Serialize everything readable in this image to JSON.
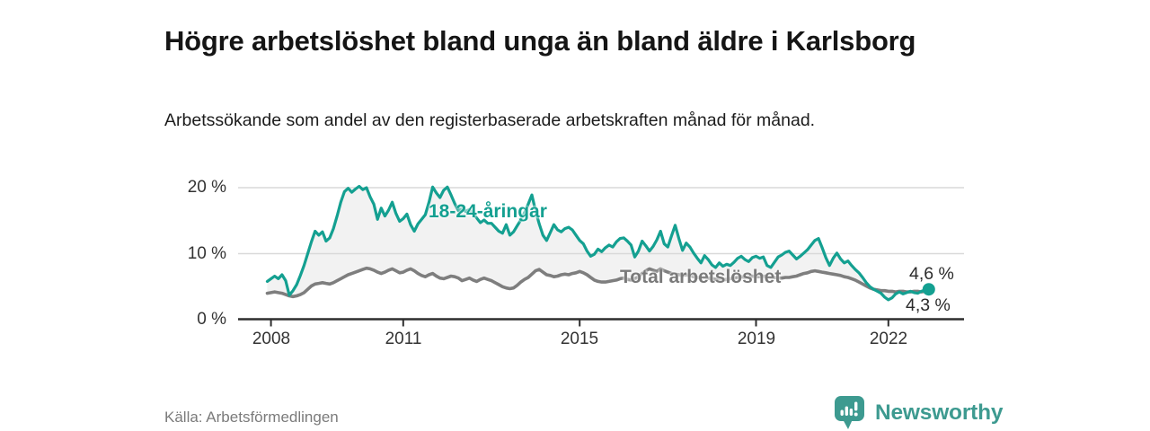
{
  "header": {
    "title": "Högre arbetslöshet bland unga än bland äldre i Karlsborg",
    "subtitle": "Arbetssökande som andel av den registerbaserade arbetskraften månad för månad."
  },
  "footer": {
    "source": "Källa: Arbetsförmedlingen",
    "brand_name": "Newsworthy",
    "brand_color": "#3d9a90",
    "brand_icon": "bar-chart-speech-bubble-icon"
  },
  "chart_data": {
    "type": "line",
    "title": "Högre arbetslöshet bland unga än bland äldre i Karlsborg",
    "subtitle": "Arbetssökande som andel av den registerbaserade arbetskraften månad för månad.",
    "unit": "%",
    "frequency": "monthly",
    "start": "2007-12",
    "end": "2022-12",
    "grid": "horizontal",
    "band_fill_between_series": "#f2f2f2",
    "x_axis": {
      "ticks": [
        2008,
        2011,
        2015,
        2019,
        2022
      ],
      "tick_labels": [
        "2008",
        "2011",
        "2015",
        "2019",
        "2022"
      ]
    },
    "y_axis": {
      "ticks": [
        0,
        10,
        20
      ],
      "tick_labels": [
        "0 %",
        "10 %",
        "20 %"
      ],
      "ylim": [
        0,
        21.5
      ]
    },
    "series": [
      {
        "name": "18-24-åringar",
        "color": "#14a091",
        "end_label": "4,6 %",
        "last_value": 4.6,
        "values": [
          5.8,
          6.2,
          6.6,
          6.2,
          6.8,
          5.9,
          3.7,
          4.4,
          5.3,
          6.7,
          8.2,
          10.0,
          11.8,
          13.4,
          12.8,
          13.3,
          11.9,
          12.4,
          13.8,
          15.7,
          17.8,
          19.4,
          19.9,
          19.3,
          19.8,
          20.2,
          19.7,
          20.0,
          18.6,
          17.5,
          15.2,
          16.9,
          15.7,
          16.6,
          17.8,
          16.1,
          14.9,
          15.3,
          16.0,
          14.4,
          13.4,
          14.5,
          15.2,
          15.9,
          17.8,
          20.1,
          19.2,
          18.5,
          19.6,
          20.1,
          18.9,
          17.6,
          16.5,
          16.9,
          16.4,
          16.7,
          16.1,
          15.4,
          14.7,
          15.1,
          14.6,
          14.6,
          14.0,
          13.4,
          13.1,
          14.4,
          12.8,
          13.3,
          14.2,
          15.1,
          16.2,
          17.5,
          18.9,
          16.5,
          14.5,
          12.8,
          12.0,
          13.2,
          14.4,
          13.6,
          13.3,
          13.8,
          14.0,
          13.6,
          12.8,
          12.0,
          11.5,
          10.4,
          9.6,
          9.9,
          10.7,
          10.3,
          10.9,
          11.3,
          11.0,
          11.8,
          12.3,
          12.4,
          11.9,
          11.3,
          9.5,
          10.4,
          11.9,
          11.2,
          10.4,
          11.1,
          12.1,
          13.4,
          11.5,
          11.0,
          12.7,
          14.3,
          12.3,
          10.5,
          11.6,
          11.0,
          10.1,
          9.3,
          8.6,
          9.7,
          9.1,
          8.3,
          7.9,
          8.6,
          8.1,
          8.4,
          8.2,
          8.7,
          9.3,
          9.6,
          9.1,
          8.8,
          9.4,
          9.6,
          9.3,
          9.5,
          8.2,
          7.9,
          8.7,
          9.5,
          9.8,
          10.2,
          10.4,
          9.8,
          9.2,
          9.6,
          10.1,
          10.6,
          11.3,
          12.0,
          12.3,
          10.9,
          9.4,
          8.2,
          9.3,
          10.1,
          9.2,
          8.6,
          8.9,
          8.2,
          7.6,
          7.1,
          6.4,
          5.6,
          5.0,
          4.6,
          4.3,
          4.0,
          3.4,
          3.0,
          3.3,
          3.9,
          4.2,
          3.9,
          4.1,
          4.3,
          4.1,
          4.0,
          4.3,
          4.5,
          4.6
        ]
      },
      {
        "name": "Total arbetslöshet",
        "color": "#7e7e7e",
        "end_label": "4,3 %",
        "last_value": 4.3,
        "values": [
          4.0,
          4.1,
          4.2,
          4.1,
          4.0,
          3.8,
          3.6,
          3.5,
          3.6,
          3.8,
          4.1,
          4.6,
          5.1,
          5.4,
          5.5,
          5.6,
          5.5,
          5.4,
          5.6,
          5.9,
          6.2,
          6.5,
          6.8,
          7.0,
          7.2,
          7.4,
          7.6,
          7.8,
          7.7,
          7.5,
          7.2,
          7.0,
          7.2,
          7.5,
          7.7,
          7.4,
          7.1,
          7.2,
          7.5,
          7.7,
          7.4,
          7.0,
          6.7,
          6.5,
          6.8,
          7.0,
          6.6,
          6.3,
          6.2,
          6.4,
          6.6,
          6.5,
          6.3,
          5.9,
          6.1,
          6.3,
          6.0,
          5.8,
          6.1,
          6.3,
          6.1,
          5.9,
          5.6,
          5.3,
          5.0,
          4.8,
          4.7,
          4.8,
          5.2,
          5.7,
          6.1,
          6.4,
          6.9,
          7.4,
          7.6,
          7.2,
          6.8,
          6.7,
          6.5,
          6.6,
          6.8,
          6.9,
          6.8,
          7.0,
          7.1,
          7.3,
          7.1,
          6.8,
          6.4,
          6.0,
          5.8,
          5.7,
          5.7,
          5.8,
          5.9,
          6.0,
          6.2,
          6.3,
          6.1,
          6.0,
          6.2,
          6.5,
          7.0,
          7.4,
          7.7,
          7.5,
          7.3,
          7.7,
          7.4,
          7.2,
          7.0,
          6.9,
          6.8,
          6.7,
          6.8,
          6.7,
          6.5,
          6.4,
          6.3,
          6.4,
          6.3,
          6.2,
          6.1,
          6.0,
          6.0,
          6.1,
          6.2,
          6.3,
          6.4,
          6.5,
          6.4,
          6.5,
          6.6,
          6.5,
          6.5,
          6.6,
          6.5,
          6.4,
          6.4,
          6.3,
          6.3,
          6.4,
          6.4,
          6.5,
          6.6,
          6.8,
          7.0,
          7.1,
          7.3,
          7.4,
          7.3,
          7.2,
          7.1,
          7.0,
          6.9,
          6.8,
          6.7,
          6.5,
          6.4,
          6.2,
          6.0,
          5.7,
          5.4,
          5.1,
          4.8,
          4.6,
          4.5,
          4.4,
          4.4,
          4.3,
          4.3,
          4.2,
          4.3,
          4.3,
          4.2,
          4.2,
          4.3,
          4.3,
          4.2,
          4.3,
          4.3
        ]
      }
    ]
  }
}
